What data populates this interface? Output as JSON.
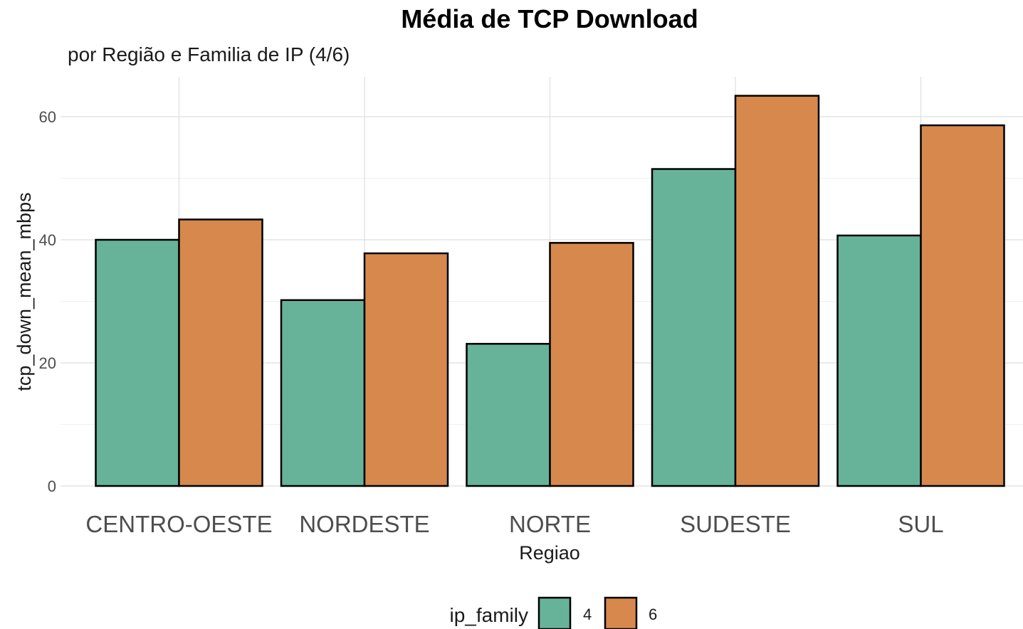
{
  "chart_data": {
    "type": "bar",
    "title": "Média de TCP Download",
    "subtitle": "por Região e Familia de IP (4/6)",
    "xlabel": "Regiao",
    "ylabel": "tcp_down_mean_mbps",
    "categories": [
      "CENTRO-OESTE",
      "NORDESTE",
      "NORTE",
      "SUDESTE",
      "SUL"
    ],
    "series": [
      {
        "name": "4",
        "color": "#66b39a",
        "values": [
          40.0,
          30.2,
          23.1,
          51.5,
          40.7
        ]
      },
      {
        "name": "6",
        "color": "#d6884d",
        "values": [
          43.3,
          37.8,
          39.5,
          63.4,
          58.6
        ]
      }
    ],
    "yticks": [
      0,
      20,
      40,
      60
    ],
    "ylim": [
      0,
      66
    ],
    "grid": true,
    "legend": {
      "title": "ip_family",
      "position": "bottom",
      "labels": [
        "4",
        "6"
      ]
    }
  }
}
